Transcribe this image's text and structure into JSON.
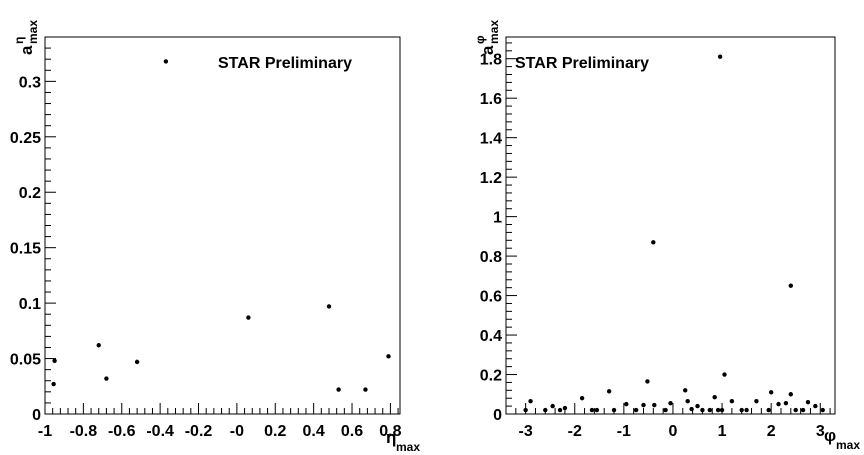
{
  "chart_data": [
    {
      "type": "scatter",
      "title": "",
      "annotation": "STAR Preliminary",
      "xlabel": {
        "main": "η",
        "sub": "max"
      },
      "ylabel": {
        "main": "a",
        "sup": "η",
        "sub": "max"
      },
      "xlim": [
        -1.0,
        0.85
      ],
      "ylim": [
        0,
        0.34
      ],
      "grid": false,
      "marker_color": "#000000",
      "xticks": [
        {
          "value": -1.0,
          "label": "-1"
        },
        {
          "value": -0.8,
          "label": "-0.8"
        },
        {
          "value": -0.6,
          "label": "-0.6"
        },
        {
          "value": -0.4,
          "label": "-0.4"
        },
        {
          "value": -0.2,
          "label": "-0.2"
        },
        {
          "value": 0.0,
          "label": "-0"
        },
        {
          "value": 0.2,
          "label": "0.2"
        },
        {
          "value": 0.4,
          "label": "0.4"
        },
        {
          "value": 0.6,
          "label": "0.6"
        },
        {
          "value": 0.8,
          "label": "0.8"
        }
      ],
      "yticks": [
        {
          "value": 0,
          "label": "0"
        },
        {
          "value": 0.05,
          "label": "0.05"
        },
        {
          "value": 0.1,
          "label": "0.1"
        },
        {
          "value": 0.15,
          "label": "0.15"
        },
        {
          "value": 0.2,
          "label": "0.2"
        },
        {
          "value": 0.25,
          "label": "0.25"
        },
        {
          "value": 0.3,
          "label": "0.3"
        }
      ],
      "points": [
        {
          "x": -0.95,
          "y": 0.048
        },
        {
          "x": -0.955,
          "y": 0.027
        },
        {
          "x": -0.72,
          "y": 0.062
        },
        {
          "x": -0.68,
          "y": 0.032
        },
        {
          "x": -0.52,
          "y": 0.047
        },
        {
          "x": -0.37,
          "y": 0.318
        },
        {
          "x": 0.06,
          "y": 0.087
        },
        {
          "x": 0.48,
          "y": 0.097
        },
        {
          "x": 0.53,
          "y": 0.022
        },
        {
          "x": 0.67,
          "y": 0.022
        },
        {
          "x": 0.79,
          "y": 0.052
        }
      ]
    },
    {
      "type": "scatter",
      "title": "",
      "annotation": "STAR Preliminary",
      "xlabel": {
        "main": "φ",
        "sub": "max"
      },
      "ylabel": {
        "main": "a",
        "sup": "φ",
        "sub": "max"
      },
      "xlim": [
        -3.4,
        3.3
      ],
      "ylim": [
        0,
        1.91
      ],
      "grid": false,
      "marker_color": "#000000",
      "xticks": [
        {
          "value": -3,
          "label": "-3"
        },
        {
          "value": -2,
          "label": "-2"
        },
        {
          "value": -1,
          "label": "-1"
        },
        {
          "value": 0,
          "label": "0"
        },
        {
          "value": 1,
          "label": "1"
        },
        {
          "value": 2,
          "label": "2"
        },
        {
          "value": 3,
          "label": "3"
        }
      ],
      "yticks": [
        {
          "value": 0,
          "label": "0"
        },
        {
          "value": 0.2,
          "label": "0.2"
        },
        {
          "value": 0.4,
          "label": "0.4"
        },
        {
          "value": 0.6,
          "label": "0.6"
        },
        {
          "value": 0.8,
          "label": "0.8"
        },
        {
          "value": 1.0,
          "label": "1"
        },
        {
          "value": 1.2,
          "label": "1.2"
        },
        {
          "value": 1.4,
          "label": "1.4"
        },
        {
          "value": 1.6,
          "label": "1.6"
        },
        {
          "value": 1.8,
          "label": "1.8"
        }
      ],
      "points": [
        {
          "x": -3.0,
          "y": 0.02
        },
        {
          "x": -2.9,
          "y": 0.065
        },
        {
          "x": -2.6,
          "y": 0.02
        },
        {
          "x": -2.45,
          "y": 0.04
        },
        {
          "x": -2.3,
          "y": 0.02
        },
        {
          "x": -2.2,
          "y": 0.03
        },
        {
          "x": -1.85,
          "y": 0.08
        },
        {
          "x": -1.65,
          "y": 0.02
        },
        {
          "x": -1.55,
          "y": 0.02
        },
        {
          "x": -1.3,
          "y": 0.115
        },
        {
          "x": -1.2,
          "y": 0.02
        },
        {
          "x": -0.95,
          "y": 0.05
        },
        {
          "x": -0.75,
          "y": 0.02
        },
        {
          "x": -0.6,
          "y": 0.045
        },
        {
          "x": -0.52,
          "y": 0.165
        },
        {
          "x": -0.4,
          "y": 0.87
        },
        {
          "x": -0.38,
          "y": 0.045
        },
        {
          "x": -0.15,
          "y": 0.02
        },
        {
          "x": -0.05,
          "y": 0.055
        },
        {
          "x": 0.25,
          "y": 0.12
        },
        {
          "x": 0.3,
          "y": 0.065
        },
        {
          "x": 0.38,
          "y": 0.025
        },
        {
          "x": 0.5,
          "y": 0.04
        },
        {
          "x": 0.6,
          "y": 0.02
        },
        {
          "x": 0.75,
          "y": 0.02
        },
        {
          "x": 0.85,
          "y": 0.085
        },
        {
          "x": 0.92,
          "y": 0.02
        },
        {
          "x": 0.96,
          "y": 1.81
        },
        {
          "x": 1.0,
          "y": 0.02
        },
        {
          "x": 1.05,
          "y": 0.2
        },
        {
          "x": 1.2,
          "y": 0.065
        },
        {
          "x": 1.4,
          "y": 0.02
        },
        {
          "x": 1.5,
          "y": 0.02
        },
        {
          "x": 1.7,
          "y": 0.065
        },
        {
          "x": 1.95,
          "y": 0.02
        },
        {
          "x": 2.0,
          "y": 0.11
        },
        {
          "x": 2.15,
          "y": 0.05
        },
        {
          "x": 2.3,
          "y": 0.055
        },
        {
          "x": 2.4,
          "y": 0.65
        },
        {
          "x": 2.4,
          "y": 0.1
        },
        {
          "x": 2.5,
          "y": 0.02
        },
        {
          "x": 2.65,
          "y": 0.02
        },
        {
          "x": 2.75,
          "y": 0.06
        },
        {
          "x": 2.9,
          "y": 0.04
        },
        {
          "x": 3.05,
          "y": 0.02
        }
      ]
    }
  ]
}
